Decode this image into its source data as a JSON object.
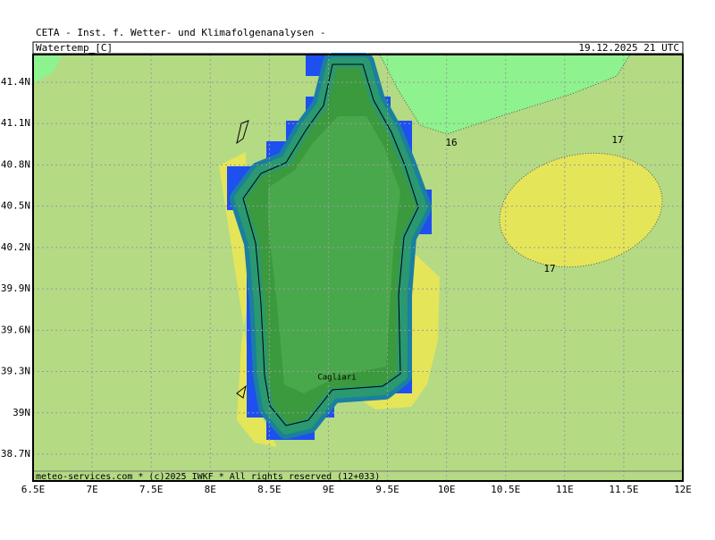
{
  "header": {
    "title": "CETA - Inst. f. Wetter- und Klimafolgenanalysen -",
    "variable": "Watertemp_[C]",
    "valid_time": "19.12.2025 21 UTC"
  },
  "map": {
    "lon_ticks": [
      {
        "value": 6.5,
        "label": "6.5E"
      },
      {
        "value": 7,
        "label": "7E"
      },
      {
        "value": 7.5,
        "label": "7.5E"
      },
      {
        "value": 8,
        "label": "8E"
      },
      {
        "value": 8.5,
        "label": "8.5E"
      },
      {
        "value": 9,
        "label": "9E"
      },
      {
        "value": 9.5,
        "label": "9.5E"
      },
      {
        "value": 10,
        "label": "10E"
      },
      {
        "value": 10.5,
        "label": "10.5E"
      },
      {
        "value": 11,
        "label": "11E"
      },
      {
        "value": 11.5,
        "label": "11.5E"
      },
      {
        "value": 12,
        "label": "12E"
      }
    ],
    "lat_ticks": [
      {
        "value": 41.4,
        "label": "41.4N"
      },
      {
        "value": 41.1,
        "label": "41.1N"
      },
      {
        "value": 40.8,
        "label": "40.8N"
      },
      {
        "value": 40.5,
        "label": "40.5N"
      },
      {
        "value": 40.2,
        "label": "40.2N"
      },
      {
        "value": 39.9,
        "label": "39.9N"
      },
      {
        "value": 39.6,
        "label": "39.6N"
      },
      {
        "value": 39.3,
        "label": "39.3N"
      },
      {
        "value": 39,
        "label": "39N"
      },
      {
        "value": 38.7,
        "label": "38.7N"
      }
    ],
    "contour_labels": [
      "16",
      "17",
      "17"
    ],
    "places": [
      "Cagliari"
    ]
  },
  "footer": "meteo-services.com * (c)2025 IWKF * All rights reserved (12+033)"
}
